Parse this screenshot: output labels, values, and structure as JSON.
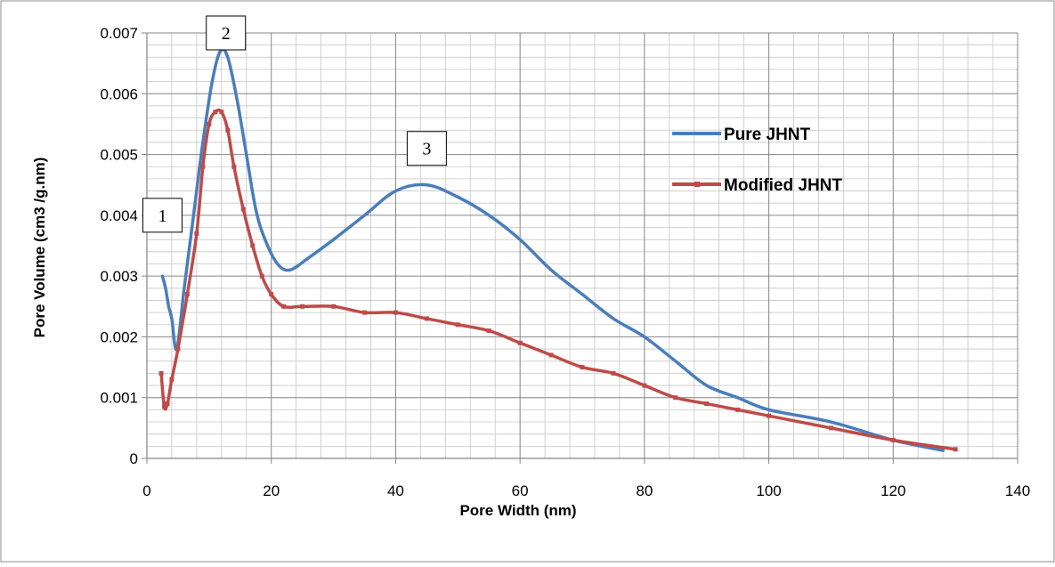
{
  "chart_data": {
    "type": "line",
    "title": "",
    "xlabel": "Pore Width (nm)",
    "ylabel": "Pore Volume (cm3 /g.nm)",
    "xlim": [
      0,
      140
    ],
    "ylim": [
      0,
      0.007
    ],
    "x_ticks": [
      "0",
      "20",
      "40",
      "60",
      "80",
      "100",
      "120",
      "140"
    ],
    "y_ticks": [
      "0",
      "0.001",
      "0.002",
      "0.003",
      "0.004",
      "0.005",
      "0.006",
      "0.007"
    ],
    "grid": true,
    "minor_grid": true,
    "legend_position": "right",
    "series": [
      {
        "name": "Pure JHNT",
        "color": "#4a7ebb",
        "markers": false,
        "points": [
          [
            2.5,
            0.003
          ],
          [
            3.0,
            0.0028
          ],
          [
            3.5,
            0.0025
          ],
          [
            4.0,
            0.0023
          ],
          [
            4.8,
            0.0018
          ],
          [
            6.0,
            0.0028
          ],
          [
            7.5,
            0.004
          ],
          [
            9.0,
            0.0052
          ],
          [
            10.5,
            0.0062
          ],
          [
            11.8,
            0.0067
          ],
          [
            13.0,
            0.0066
          ],
          [
            14.5,
            0.0059
          ],
          [
            16.0,
            0.005
          ],
          [
            17.5,
            0.0041
          ],
          [
            19.0,
            0.0036
          ],
          [
            21.0,
            0.0032
          ],
          [
            23.0,
            0.0031
          ],
          [
            26.0,
            0.0033
          ],
          [
            30.0,
            0.0036
          ],
          [
            35.0,
            0.004
          ],
          [
            40.0,
            0.0044
          ],
          [
            45.0,
            0.0045
          ],
          [
            50.0,
            0.0043
          ],
          [
            55.0,
            0.004
          ],
          [
            60.0,
            0.0036
          ],
          [
            65.0,
            0.0031
          ],
          [
            70.0,
            0.0027
          ],
          [
            75.0,
            0.0023
          ],
          [
            80.0,
            0.002
          ],
          [
            85.0,
            0.0016
          ],
          [
            90.0,
            0.0012
          ],
          [
            95.0,
            0.001
          ],
          [
            100.0,
            0.0008
          ],
          [
            110.0,
            0.0006
          ],
          [
            120.0,
            0.0003
          ],
          [
            128.0,
            0.00013
          ]
        ]
      },
      {
        "name": "Modified JHNT",
        "color": "#be4b48",
        "markers": true,
        "points": [
          [
            2.3,
            0.0014
          ],
          [
            2.8,
            0.00085
          ],
          [
            3.3,
            0.0009
          ],
          [
            4.0,
            0.0013
          ],
          [
            5.0,
            0.0018
          ],
          [
            6.5,
            0.0027
          ],
          [
            8.0,
            0.0037
          ],
          [
            9.0,
            0.0048
          ],
          [
            10.0,
            0.0055
          ],
          [
            11.0,
            0.0057
          ],
          [
            12.0,
            0.0057
          ],
          [
            13.0,
            0.0054
          ],
          [
            14.0,
            0.0048
          ],
          [
            15.5,
            0.0041
          ],
          [
            17.0,
            0.0035
          ],
          [
            18.5,
            0.003
          ],
          [
            20.0,
            0.0027
          ],
          [
            22.0,
            0.0025
          ],
          [
            25.0,
            0.0025
          ],
          [
            30.0,
            0.0025
          ],
          [
            35.0,
            0.0024
          ],
          [
            40.0,
            0.0024
          ],
          [
            45.0,
            0.0023
          ],
          [
            50.0,
            0.0022
          ],
          [
            55.0,
            0.0021
          ],
          [
            60.0,
            0.0019
          ],
          [
            65.0,
            0.0017
          ],
          [
            70.0,
            0.0015
          ],
          [
            75.0,
            0.0014
          ],
          [
            80.0,
            0.0012
          ],
          [
            85.0,
            0.001
          ],
          [
            90.0,
            0.0009
          ],
          [
            95.0,
            0.0008
          ],
          [
            100.0,
            0.0007
          ],
          [
            110.0,
            0.0005
          ],
          [
            120.0,
            0.0003
          ],
          [
            130.0,
            0.00015
          ]
        ]
      }
    ],
    "annotations": [
      {
        "label": "1",
        "x": 2.5,
        "y": 0.004
      },
      {
        "label": "2",
        "x": 12.7,
        "y": 0.007
      },
      {
        "label": "3",
        "x": 45.0,
        "y": 0.0051
      }
    ]
  }
}
